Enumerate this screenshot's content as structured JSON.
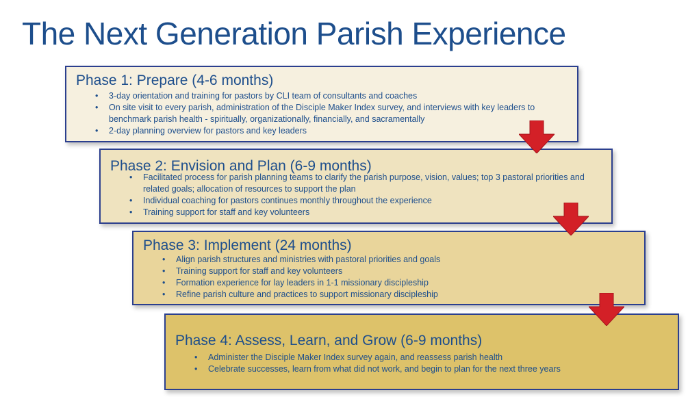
{
  "title": "The Next Generation Parish Experience",
  "phases": [
    {
      "title": "Phase 1: Prepare (4-6 months)",
      "bullets": [
        "3-day orientation and training for pastors by CLI team of consultants and coaches",
        "On site visit to every parish, administration of the Disciple Maker Index survey, and interviews with key leaders to benchmark parish health - spiritually, organizationally, financially, and sacramentally",
        "2-day planning overview for pastors and key leaders"
      ]
    },
    {
      "title": "Phase 2: Envision and Plan (6-9 months)",
      "bullets": [
        "Facilitated process for parish planning teams to clarify the parish purpose, vision, values; top 3 pastoral priorities and related goals; allocation of resources to support the plan",
        "Individual coaching for pastors continues monthly throughout the experience",
        "Training support for staff and key volunteers"
      ]
    },
    {
      "title": "Phase 3: Implement (24 months)",
      "bullets": [
        "Align parish structures and ministries with pastoral priorities and goals",
        "Training support for staff and key volunteers",
        "Formation experience for lay leaders in 1-1 missionary discipleship",
        "Refine parish culture and practices to support missionary discipleship"
      ]
    },
    {
      "title": "Phase 4: Assess, Learn, and Grow (6-9 months)",
      "bullets": [
        "Administer the Disciple Maker Index survey again, and reassess parish health",
        "Celebrate successes, learn from what did not work, and begin to plan for the next three years"
      ]
    }
  ],
  "colors": {
    "title_text": "#1d4e8c",
    "box_border": "#2b3f8e",
    "phase_1_fill": "#f6f0df",
    "phase_2_fill": "#efe3bf",
    "phase_3_fill": "#e9d59b",
    "phase_4_fill": "#ddc26a",
    "arrow": "#d32027"
  },
  "icons": {
    "transition_arrow": "down-arrow-icon"
  }
}
